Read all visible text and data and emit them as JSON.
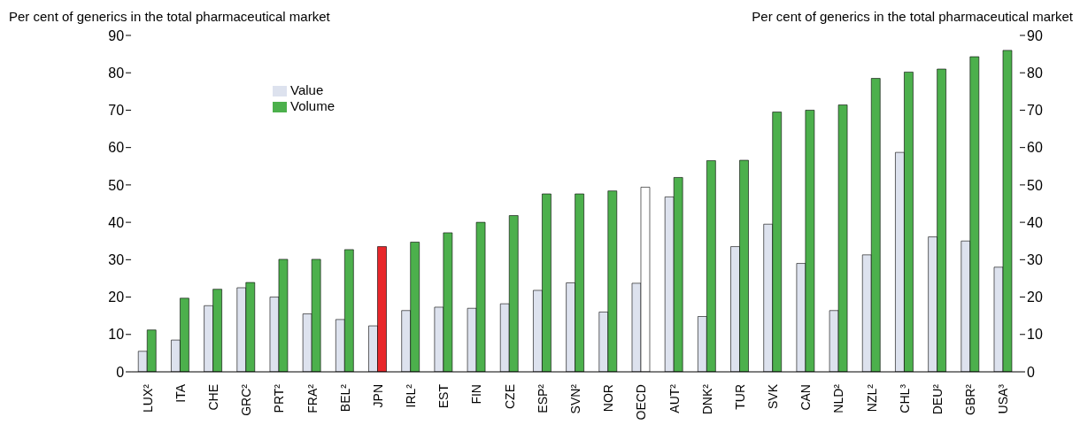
{
  "chart_data": {
    "type": "bar",
    "ylabel": "Per cent of generics in the total pharmaceutical market",
    "y2label": "Per cent of generics in the total pharmaceutical market",
    "categories": [
      "LUX²",
      "ITA",
      "CHE",
      "GRC²",
      "PRT²",
      "FRA²",
      "BEL²",
      "JPN",
      "IRL²",
      "EST",
      "FIN",
      "CZE",
      "ESP²",
      "SVN²",
      "NOR",
      "OECD",
      "AUT²",
      "DNK²",
      "TUR",
      "SVK",
      "CAN",
      "NLD²",
      "NZL²",
      "CHL³",
      "DEU²",
      "GBR²",
      "USA³"
    ],
    "series": [
      {
        "name": "Value",
        "color": "#dde2ee",
        "values": [
          5.5,
          8.5,
          17.7,
          22.5,
          20,
          15.5,
          14,
          12.3,
          16.4,
          17.3,
          17,
          18.2,
          21.8,
          23.8,
          16,
          23.7,
          46.8,
          14.8,
          33.5,
          39.5,
          29,
          16.4,
          31.3,
          58.7,
          36.1,
          35,
          28
        ]
      },
      {
        "name": "Volume",
        "color": "#4cb04c",
        "colors": [
          "#4cb04c",
          "#4cb04c",
          "#4cb04c",
          "#4cb04c",
          "#4cb04c",
          "#4cb04c",
          "#4cb04c",
          "#e8262a",
          "#4cb04c",
          "#4cb04c",
          "#4cb04c",
          "#4cb04c",
          "#4cb04c",
          "#4cb04c",
          "#4cb04c",
          "#ffffff",
          "#4cb04c",
          "#4cb04c",
          "#4cb04c",
          "#4cb04c",
          "#4cb04c",
          "#4cb04c",
          "#4cb04c",
          "#4cb04c",
          "#4cb04c",
          "#4cb04c",
          "#4cb04c"
        ],
        "values": [
          11.2,
          19.7,
          22.1,
          23.9,
          30.1,
          30.1,
          32.7,
          33.5,
          34.7,
          37.2,
          40,
          41.8,
          47.6,
          47.6,
          48.4,
          49.4,
          52,
          56.5,
          56.6,
          69.5,
          70,
          71.4,
          78.5,
          80.2,
          81,
          84.3,
          86
        ]
      }
    ],
    "ylim": [
      0,
      90
    ],
    "yticks": [
      0,
      10,
      20,
      30,
      40,
      50,
      60,
      70,
      80,
      90
    ],
    "y2lim": [
      0,
      90
    ],
    "y2ticks": [
      0,
      10,
      20,
      30,
      40,
      50,
      60,
      70,
      80,
      90
    ],
    "grid": false,
    "legend": "top left"
  }
}
